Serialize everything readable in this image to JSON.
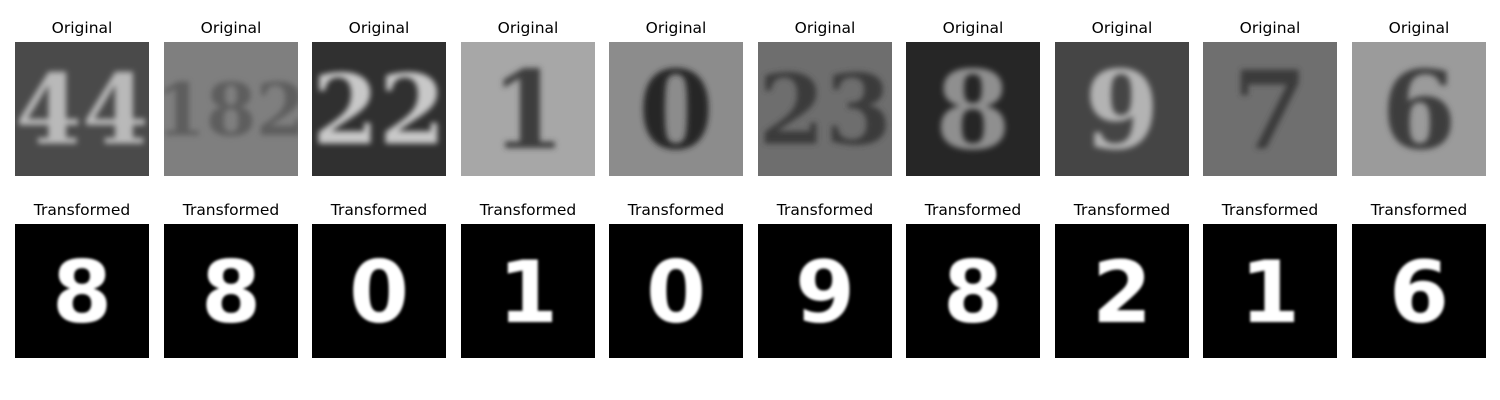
{
  "figure": {
    "rows": [
      {
        "id": "original",
        "panels": [
          {
            "title": "Original",
            "digit_text": "44",
            "bg": "#4a4a4a",
            "fg": "#b9b9b9"
          },
          {
            "title": "Original",
            "digit_text": "182",
            "bg": "#7f7f7f",
            "fg": "#5d5d5d"
          },
          {
            "title": "Original",
            "digit_text": "22",
            "bg": "#303030",
            "fg": "#c8c8c8"
          },
          {
            "title": "Original",
            "digit_text": "1",
            "bg": "#a7a7a7",
            "fg": "#3e3e3e"
          },
          {
            "title": "Original",
            "digit_text": "0",
            "bg": "#8c8c8c",
            "fg": "#262626"
          },
          {
            "title": "Original",
            "digit_text": "23",
            "bg": "#6e6e6e",
            "fg": "#3b3b3b"
          },
          {
            "title": "Original",
            "digit_text": "8",
            "bg": "#262626",
            "fg": "#8f8f8f"
          },
          {
            "title": "Original",
            "digit_text": "9",
            "bg": "#454545",
            "fg": "#b3b3b3"
          },
          {
            "title": "Original",
            "digit_text": "7",
            "bg": "#6f6f6f",
            "fg": "#3a3a3a"
          },
          {
            "title": "Original",
            "digit_text": "6",
            "bg": "#9b9b9b",
            "fg": "#3e3e3e"
          }
        ]
      },
      {
        "id": "transformed",
        "panels": [
          {
            "title": "Transformed",
            "digit_text": "8",
            "bg": "#000000",
            "fg": "#ffffff"
          },
          {
            "title": "Transformed",
            "digit_text": "8",
            "bg": "#000000",
            "fg": "#ffffff"
          },
          {
            "title": "Transformed",
            "digit_text": "0",
            "bg": "#000000",
            "fg": "#ffffff"
          },
          {
            "title": "Transformed",
            "digit_text": "1",
            "bg": "#000000",
            "fg": "#ffffff"
          },
          {
            "title": "Transformed",
            "digit_text": "0",
            "bg": "#000000",
            "fg": "#ffffff"
          },
          {
            "title": "Transformed",
            "digit_text": "9",
            "bg": "#000000",
            "fg": "#ffffff"
          },
          {
            "title": "Transformed",
            "digit_text": "8",
            "bg": "#000000",
            "fg": "#ffffff"
          },
          {
            "title": "Transformed",
            "digit_text": "2",
            "bg": "#000000",
            "fg": "#ffffff"
          },
          {
            "title": "Transformed",
            "digit_text": "1",
            "bg": "#000000",
            "fg": "#ffffff"
          },
          {
            "title": "Transformed",
            "digit_text": "6",
            "bg": "#000000",
            "fg": "#ffffff"
          }
        ]
      }
    ]
  }
}
